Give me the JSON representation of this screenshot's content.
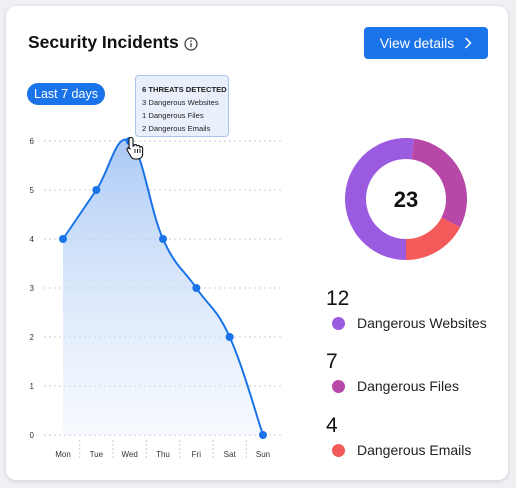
{
  "card": {
    "title": "Security Incidents",
    "view_details_label": "View details",
    "range_label": "Last 7 days"
  },
  "tooltip": {
    "heading": "6 THREATS DETECTED",
    "lines": [
      "3 Dangerous Websites",
      "1 Dangerous Files",
      "2 Dangerous Emails"
    ]
  },
  "chart_data": [
    {
      "type": "area",
      "categories": [
        "Mon",
        "Tue",
        "Wed",
        "Thu",
        "Fri",
        "Sat",
        "Sun"
      ],
      "values": [
        4,
        5,
        6,
        4,
        3,
        2,
        0
      ],
      "y_ticks": [
        0,
        1,
        2,
        3,
        4,
        5,
        6
      ],
      "ylim": [
        0,
        6
      ],
      "grid": true,
      "color": "#1a73e8"
    },
    {
      "type": "pie",
      "total": "23",
      "slices": [
        {
          "label": "Dangerous Websites",
          "value": 12,
          "color": "#9b5be0"
        },
        {
          "label": "Dangerous Files",
          "value": 7,
          "color": "#b848a8"
        },
        {
          "label": "Dangerous Emails",
          "value": 4,
          "color": "#f45a5a"
        }
      ]
    }
  ],
  "legend": [
    {
      "count": "12",
      "label": "Dangerous Websites",
      "color": "#9b5be0"
    },
    {
      "count": "7",
      "label": "Dangerous Files",
      "color": "#b848a8"
    },
    {
      "count": "4",
      "label": "Dangerous Emails",
      "color": "#f45a5a"
    }
  ],
  "icons": {
    "info": "info-circle-icon",
    "chevron": "chevron-right-icon",
    "cursor": "hand-pointer-icon"
  }
}
